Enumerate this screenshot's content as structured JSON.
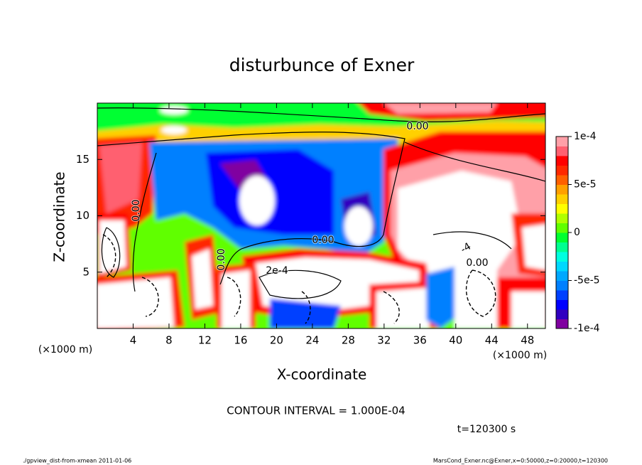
{
  "chart_data": {
    "type": "contour",
    "title": "disturbunce of Exner",
    "xlabel": "X-coordinate",
    "ylabel": "Z-coordinate",
    "xunit": "(×1000 m)",
    "xlim": [
      0,
      50
    ],
    "xticks": [
      4,
      8,
      12,
      16,
      20,
      24,
      28,
      32,
      36,
      40,
      44,
      48
    ],
    "ylim": [
      0,
      20
    ],
    "yticks": [
      5,
      10,
      15
    ],
    "clim": [
      -0.0001,
      0.0001
    ],
    "colorbar_ticks": [
      {
        "value": 0.0001,
        "label": "1e-4"
      },
      {
        "value": 5e-05,
        "label": "5e-5"
      },
      0,
      {
        "value": -5e-05,
        "label": "-5e-5"
      },
      {
        "value": -0.0001,
        "label": "-1e-4"
      }
    ],
    "colors": [
      "#8000a0",
      "#3000c0",
      "#0000ff",
      "#0040ff",
      "#0080ff",
      "#00a8ff",
      "#00d8ff",
      "#00ffe0",
      "#00ff90",
      "#00ff30",
      "#60ff00",
      "#b0ff00",
      "#ffff00",
      "#ffd000",
      "#ffa000",
      "#ff6000",
      "#ff2800",
      "#ff0000",
      "#ff6070",
      "#ffa0a8"
    ],
    "annotations": [
      "0.00",
      "0.00",
      "0.00",
      "0.00",
      "2e-4",
      "-4",
      "0.00"
    ],
    "contour_interval": "CONTOUR INTERVAL = 1.000E-04",
    "time_label": "t=120300 s",
    "footer_left": "./gpview_dist-from-xmean  2011-01-06",
    "footer_right": "MarsCond_Exner.nc@Exner,x=0:50000,z=0:20000,t=120300"
  }
}
